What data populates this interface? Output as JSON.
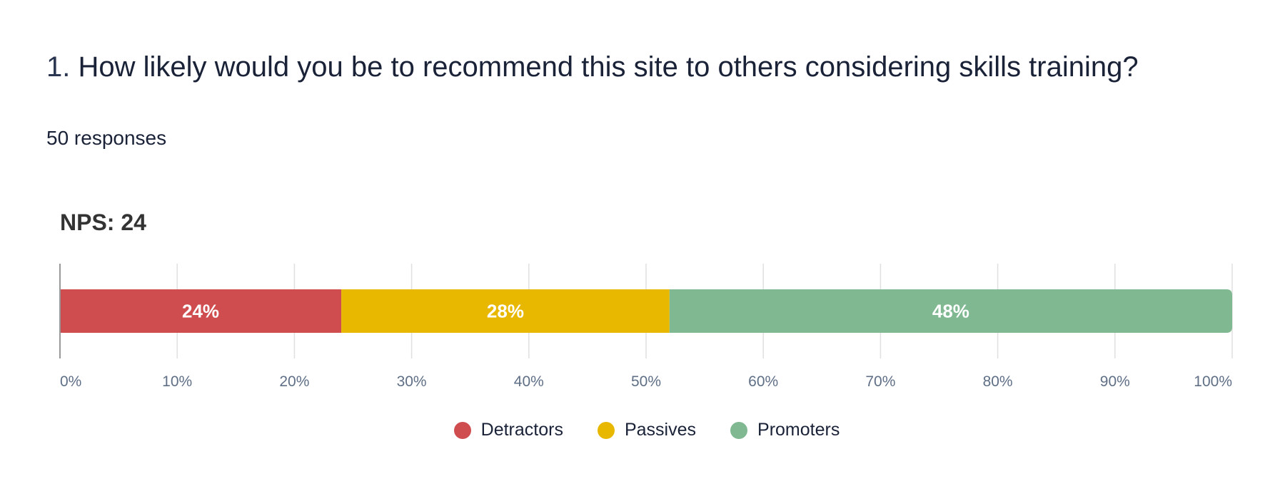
{
  "question": {
    "number": "1.",
    "text": "How likely would you be to recommend this site to others considering skills training?"
  },
  "responses_label": "50 responses",
  "nps_label": "NPS: 24",
  "colors": {
    "detractors": "#cf4d4f",
    "passives": "#e8b800",
    "promoters": "#7fb891",
    "grid": "#e0e0e0",
    "axis": "#999999"
  },
  "chart_data": {
    "type": "bar",
    "orientation": "horizontal",
    "stacked": true,
    "xlim": [
      0,
      100
    ],
    "x_ticks": [
      "0%",
      "10%",
      "20%",
      "30%",
      "40%",
      "50%",
      "60%",
      "70%",
      "80%",
      "90%",
      "100%"
    ],
    "grid": true,
    "legend_position": "bottom",
    "series": [
      {
        "name": "Detractors",
        "value": 24,
        "label": "24%",
        "color": "#cf4d4f"
      },
      {
        "name": "Passives",
        "value": 28,
        "label": "28%",
        "color": "#e8b800"
      },
      {
        "name": "Promoters",
        "value": 48,
        "label": "48%",
        "color": "#7fb891"
      }
    ]
  }
}
